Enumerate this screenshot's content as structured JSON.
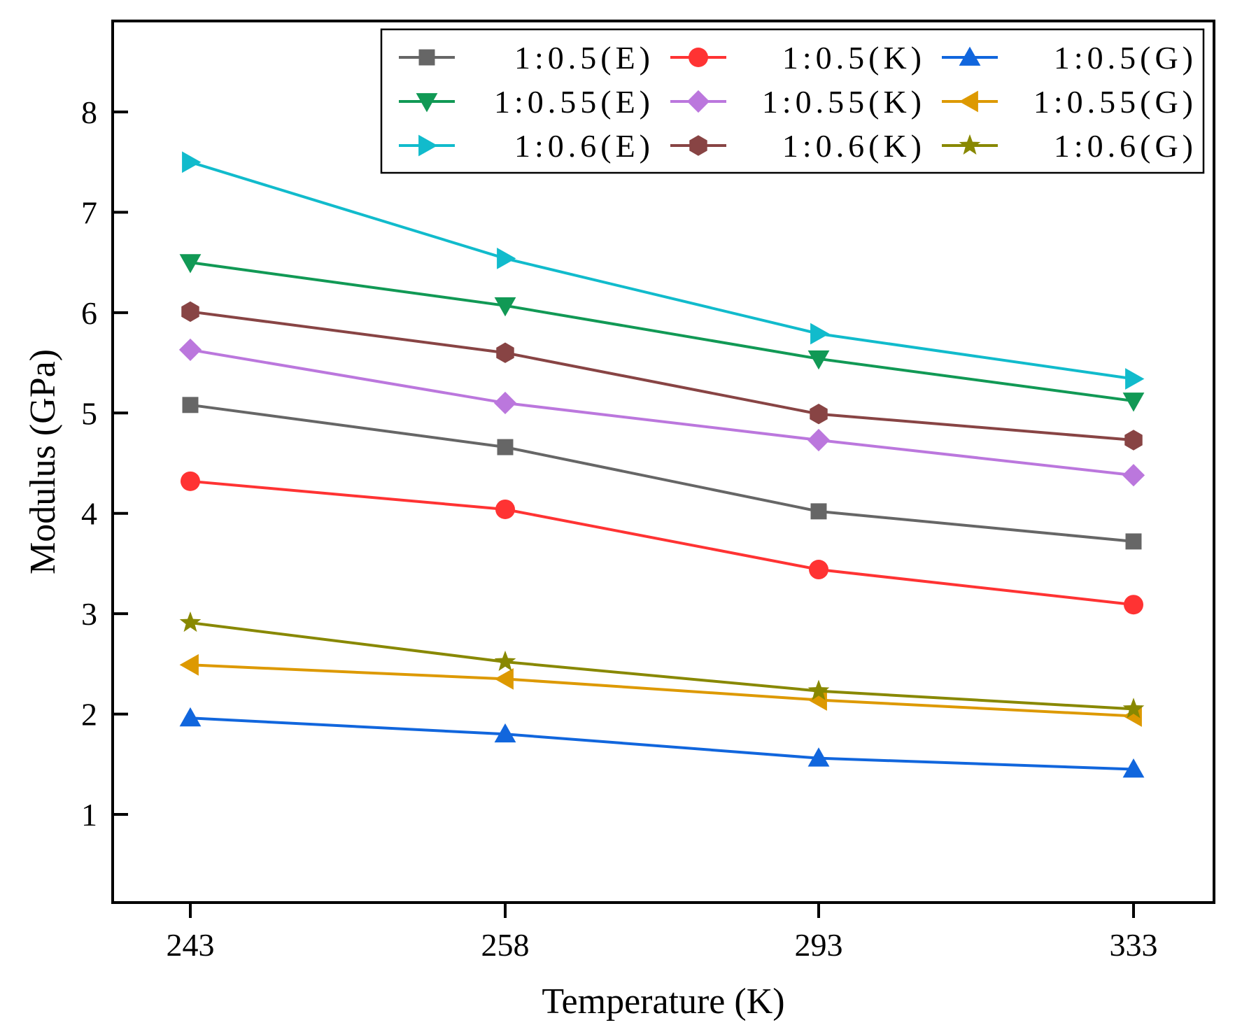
{
  "chart_data": {
    "type": "line",
    "xlabel": "Temperature (K)",
    "ylabel": "Modulus (GPa)",
    "categories": [
      "243",
      "258",
      "293",
      "333"
    ],
    "ylim": [
      0.1,
      8.8
    ],
    "yticks": [
      "1",
      "2",
      "3",
      "4",
      "5",
      "6",
      "7",
      "8"
    ],
    "grid": false,
    "legend_position": "top-right",
    "series": [
      {
        "name": "1:0.5(E)",
        "values": [
          5.08,
          4.66,
          4.02,
          3.72
        ],
        "color": "#666666",
        "marker": "square"
      },
      {
        "name": "1:0.5(K)",
        "values": [
          4.32,
          4.04,
          3.44,
          3.09
        ],
        "color": "#ff3333",
        "marker": "circle"
      },
      {
        "name": "1:0.5(G)",
        "values": [
          1.96,
          1.8,
          1.56,
          1.45
        ],
        "color": "#1166dd",
        "marker": "triangle-up"
      },
      {
        "name": "1:0.55(E)",
        "values": [
          6.5,
          6.07,
          5.54,
          5.12
        ],
        "color": "#119955",
        "marker": "triangle-down"
      },
      {
        "name": "1:0.55(K)",
        "values": [
          5.63,
          5.1,
          4.73,
          4.38
        ],
        "color": "#bb77dd",
        "marker": "diamond"
      },
      {
        "name": "1:0.55(G)",
        "values": [
          2.49,
          2.35,
          2.14,
          1.98
        ],
        "color": "#dd9900",
        "marker": "triangle-left"
      },
      {
        "name": "1:0.6(E)",
        "values": [
          7.5,
          6.54,
          5.79,
          5.34
        ],
        "color": "#11bbcc",
        "marker": "triangle-right"
      },
      {
        "name": "1:0.6(K)",
        "values": [
          6.01,
          5.6,
          4.99,
          4.73
        ],
        "color": "#884444",
        "marker": "hexagon"
      },
      {
        "name": "1:0.6(G)",
        "values": [
          2.91,
          2.52,
          2.23,
          2.05
        ],
        "color": "#888800",
        "marker": "star"
      }
    ]
  }
}
